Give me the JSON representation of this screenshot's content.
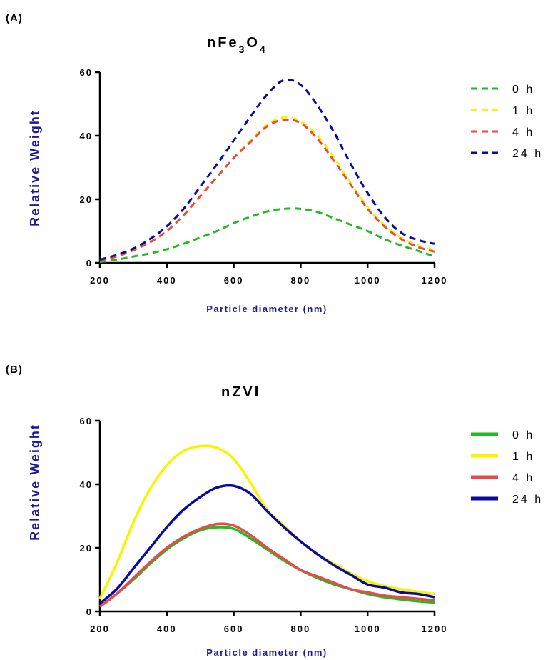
{
  "chart_data": [
    {
      "panel": "(A)",
      "type": "line",
      "title_main": "nFe",
      "title_sub1": "3",
      "title_mid": "O",
      "title_sub2": "4",
      "xlabel": "Particle diameter (nm)",
      "ylabel": "Relative Weight",
      "xlim": [
        200,
        1200
      ],
      "ylim": [
        0,
        60
      ],
      "xticks": [
        200,
        400,
        600,
        800,
        1000,
        1200
      ],
      "yticks": [
        0,
        20,
        40,
        60
      ],
      "line_style": "dashed",
      "legend_position": "right",
      "x": [
        200,
        250,
        300,
        350,
        400,
        450,
        500,
        550,
        600,
        650,
        700,
        750,
        800,
        850,
        900,
        950,
        1000,
        1050,
        1100,
        1150,
        1200
      ],
      "series": [
        {
          "name": "0 h",
          "color": "#22bb22",
          "values": [
            0.3,
            1,
            2,
            3,
            4.3,
            6,
            8,
            10,
            12.5,
            14.5,
            16.2,
            17,
            17,
            16,
            14,
            12,
            10,
            7.5,
            5.5,
            3.8,
            2
          ]
        },
        {
          "name": "1 h",
          "color": "#f5f500",
          "values": [
            0.8,
            2,
            4,
            6.5,
            10,
            15,
            21,
            27,
            33,
            38.5,
            43.5,
            45.8,
            44.5,
            40,
            33,
            25,
            17.5,
            12,
            8,
            5.5,
            4
          ]
        },
        {
          "name": "4 h",
          "color": "#e84a4a",
          "values": [
            0.7,
            2,
            4,
            6.5,
            10,
            15,
            21,
            27,
            33,
            38,
            43,
            45,
            44,
            39,
            32,
            24.5,
            17,
            11.5,
            7.5,
            5,
            3.5
          ]
        },
        {
          "name": "24 h",
          "color": "#0a0aa0",
          "values": [
            1,
            2.5,
            4.5,
            7.5,
            11.5,
            17,
            24,
            31,
            38.5,
            46,
            53,
            57.5,
            56,
            49.5,
            41,
            31,
            22,
            14.5,
            9.5,
            7.2,
            6
          ]
        }
      ]
    },
    {
      "panel": "(B)",
      "type": "line",
      "title_main": "nZVI",
      "xlabel": "Particle diameter (nm)",
      "ylabel": "Relative Weight",
      "xlim": [
        200,
        1200
      ],
      "ylim": [
        0,
        60
      ],
      "xticks": [
        200,
        400,
        600,
        800,
        1000,
        1200
      ],
      "yticks": [
        0,
        20,
        40,
        60
      ],
      "line_style": "solid",
      "legend_position": "right",
      "x": [
        200,
        250,
        300,
        350,
        400,
        450,
        500,
        550,
        600,
        650,
        700,
        750,
        800,
        850,
        900,
        950,
        1000,
        1050,
        1100,
        1150,
        1200
      ],
      "series": [
        {
          "name": "0 h",
          "color": "#22bb22",
          "values": [
            1.5,
            5.5,
            10,
            15,
            19.5,
            23,
            25.5,
            26.5,
            26,
            23,
            19.5,
            16,
            13,
            10.5,
            8.5,
            7,
            5.5,
            4.5,
            3.8,
            3.2,
            2.8
          ]
        },
        {
          "name": "1 h",
          "color": "#f5f500",
          "values": [
            4,
            15,
            28,
            38.5,
            46,
            50.5,
            52,
            51.5,
            48,
            40.5,
            32,
            27,
            22,
            18,
            15,
            12,
            9.5,
            8,
            7,
            6.2,
            5.5
          ]
        },
        {
          "name": "4 h",
          "color": "#e84a4a",
          "values": [
            1.5,
            5.5,
            10.5,
            15.5,
            20,
            23.5,
            26,
            27.5,
            27,
            24,
            20,
            16.5,
            13,
            11,
            9,
            7,
            6,
            5,
            4.5,
            4,
            3.5
          ]
        },
        {
          "name": "24 h",
          "color": "#0a0aa0",
          "values": [
            2.5,
            7,
            13.5,
            20,
            26.5,
            32,
            36,
            39,
            39.5,
            37,
            31.5,
            26.5,
            22,
            18,
            14.5,
            11.5,
            8.5,
            7.5,
            6,
            5.5,
            4.5
          ]
        }
      ]
    }
  ]
}
